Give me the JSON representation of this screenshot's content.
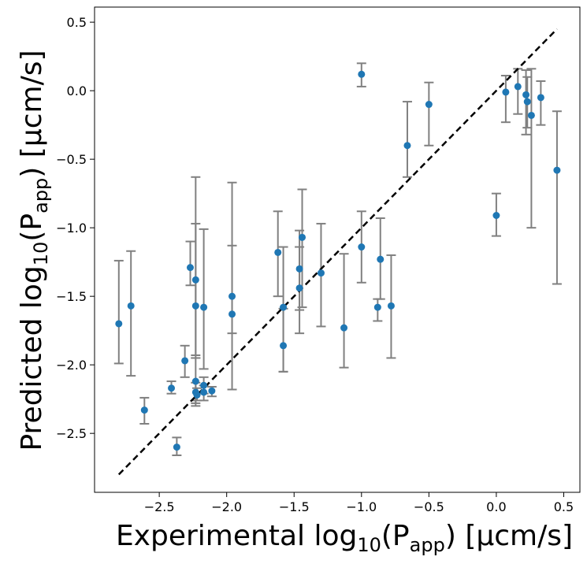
{
  "chart_data": {
    "type": "scatter",
    "xlabel": "Experimental log10(Papp) [µcm/s]",
    "ylabel": "Predicted log10(Papp) [µcm/s]",
    "xlabel_parts": {
      "pre": "Experimental log",
      "sub1": "10",
      "mid": "(P",
      "sub2": "app",
      "post": ") [µcm/s]"
    },
    "ylabel_parts": {
      "pre": "Predicted log",
      "sub1": "10",
      "mid": "(P",
      "sub2": "app",
      "post": ") [µcm/s]"
    },
    "xlim": [
      -2.98,
      0.62
    ],
    "ylim": [
      -2.93,
      0.61
    ],
    "x_ticks": [
      -2.5,
      -2.0,
      -1.5,
      -1.0,
      -0.5,
      0.0,
      0.5
    ],
    "x_tick_labels": [
      "−2.5",
      "−2.0",
      "−1.5",
      "−1.0",
      "−0.5",
      "0.0",
      "0.5"
    ],
    "y_ticks": [
      -2.5,
      -2.0,
      -1.5,
      -1.0,
      -0.5,
      0.0,
      0.5
    ],
    "y_tick_labels": [
      "−2.5",
      "−2.0",
      "−1.5",
      "−1.0",
      "−0.5",
      "0.0",
      "0.5"
    ],
    "grid": false,
    "identity_line": {
      "x": [
        -2.8,
        0.45
      ],
      "y": [
        -2.8,
        0.45
      ],
      "style": "dashed",
      "color": "#000000"
    },
    "marker_color": "#1f77b4",
    "errorbar_color": "#808080",
    "points": [
      {
        "x": -2.8,
        "y": -1.7,
        "lo": -1.99,
        "hi": -1.24
      },
      {
        "x": -2.71,
        "y": -1.57,
        "lo": -2.08,
        "hi": -1.17
      },
      {
        "x": -2.61,
        "y": -2.33,
        "lo": -2.43,
        "hi": -2.24
      },
      {
        "x": -2.41,
        "y": -2.17,
        "lo": -2.21,
        "hi": -2.12
      },
      {
        "x": -2.37,
        "y": -2.6,
        "lo": -2.66,
        "hi": -2.53
      },
      {
        "x": -2.31,
        "y": -1.97,
        "lo": -2.09,
        "hi": -1.86
      },
      {
        "x": -2.27,
        "y": -1.29,
        "lo": -1.42,
        "hi": -1.1
      },
      {
        "x": -2.23,
        "y": -1.38,
        "lo": -1.93,
        "hi": -0.63
      },
      {
        "x": -2.23,
        "y": -1.57,
        "lo": -1.95,
        "hi": -0.97
      },
      {
        "x": -2.23,
        "y": -2.12,
        "lo": -2.3,
        "hi": -1.95
      },
      {
        "x": -2.23,
        "y": -2.2,
        "lo": -2.28,
        "hi": -2.13
      },
      {
        "x": -2.22,
        "y": -2.22,
        "lo": -2.26,
        "hi": -2.17
      },
      {
        "x": -2.17,
        "y": -1.58,
        "lo": -2.03,
        "hi": -1.01
      },
      {
        "x": -2.17,
        "y": -2.15,
        "lo": -2.21,
        "hi": -2.09
      },
      {
        "x": -2.17,
        "y": -2.2,
        "lo": -2.26,
        "hi": -2.15
      },
      {
        "x": -2.11,
        "y": -2.19,
        "lo": -2.23,
        "hi": -2.16
      },
      {
        "x": -1.96,
        "y": -1.5,
        "lo": -1.77,
        "hi": -1.13
      },
      {
        "x": -1.96,
        "y": -1.63,
        "lo": -2.18,
        "hi": -0.67
      },
      {
        "x": -1.62,
        "y": -1.18,
        "lo": -1.5,
        "hi": -0.88
      },
      {
        "x": -1.58,
        "y": -1.58,
        "lo": -2.05,
        "hi": -1.14
      },
      {
        "x": -1.58,
        "y": -1.86,
        "lo": -2.05,
        "hi": -1.59
      },
      {
        "x": -1.46,
        "y": -1.3,
        "lo": -1.6,
        "hi": -1.02
      },
      {
        "x": -1.46,
        "y": -1.44,
        "lo": -1.77,
        "hi": -1.14
      },
      {
        "x": -1.44,
        "y": -1.07,
        "lo": -1.58,
        "hi": -0.72
      },
      {
        "x": -1.3,
        "y": -1.33,
        "lo": -1.72,
        "hi": -0.97
      },
      {
        "x": -1.13,
        "y": -1.73,
        "lo": -2.02,
        "hi": -1.19
      },
      {
        "x": -1.0,
        "y": 0.12,
        "lo": 0.03,
        "hi": 0.2
      },
      {
        "x": -1.0,
        "y": -1.14,
        "lo": -1.4,
        "hi": -0.88
      },
      {
        "x": -0.88,
        "y": -1.58,
        "lo": -1.68,
        "hi": -1.52
      },
      {
        "x": -0.86,
        "y": -1.23,
        "lo": -1.52,
        "hi": -0.93
      },
      {
        "x": -0.78,
        "y": -1.57,
        "lo": -1.95,
        "hi": -1.2
      },
      {
        "x": -0.66,
        "y": -0.4,
        "lo": -0.63,
        "hi": -0.08
      },
      {
        "x": -0.5,
        "y": -0.1,
        "lo": -0.4,
        "hi": 0.06
      },
      {
        "x": 0.0,
        "y": -0.91,
        "lo": -1.06,
        "hi": -0.75
      },
      {
        "x": 0.07,
        "y": -0.01,
        "lo": -0.23,
        "hi": 0.11
      },
      {
        "x": 0.16,
        "y": 0.03,
        "lo": -0.17,
        "hi": 0.16
      },
      {
        "x": 0.22,
        "y": -0.03,
        "lo": -0.32,
        "hi": 0.15
      },
      {
        "x": 0.23,
        "y": -0.08,
        "lo": -0.27,
        "hi": 0.1
      },
      {
        "x": 0.26,
        "y": -0.18,
        "lo": -1.0,
        "hi": 0.16
      },
      {
        "x": 0.33,
        "y": -0.05,
        "lo": -0.25,
        "hi": 0.07
      },
      {
        "x": 0.45,
        "y": -0.58,
        "lo": -1.41,
        "hi": -0.15
      }
    ]
  }
}
